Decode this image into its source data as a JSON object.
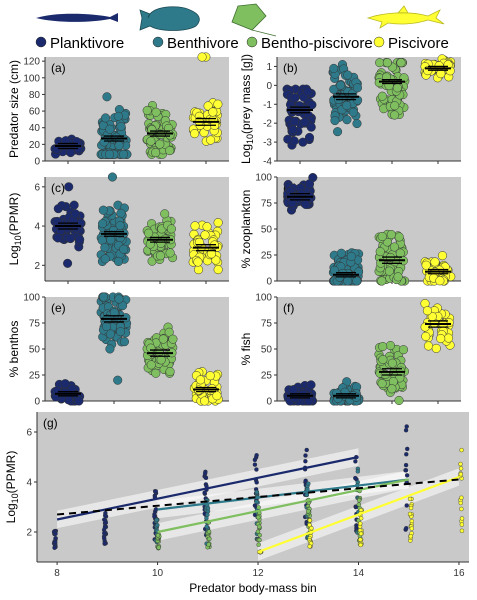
{
  "legend": {
    "items": [
      {
        "label": "Planktivore",
        "color": "#1a2a6c",
        "icon": "eel-fish-icon"
      },
      {
        "label": "Benthivore",
        "color": "#2f7a8a",
        "icon": "flatfish-icon"
      },
      {
        "label": "Bentho-piscivore",
        "color": "#7fbf5f",
        "icon": "stingray-icon"
      },
      {
        "label": "Piscivore",
        "color": "#ffff33",
        "icon": "shark-icon"
      }
    ]
  },
  "chart_data": [
    {
      "panel": "(a)",
      "type": "scatter",
      "ylabel": "Predator size (cm)",
      "ylim": [
        0,
        125
      ],
      "yticks": [
        0,
        20,
        40,
        60,
        80,
        100,
        120
      ],
      "categories": [
        "Planktivore",
        "Benthivore",
        "Bentho-piscivore",
        "Piscivore"
      ],
      "means": [
        18,
        27,
        33,
        47
      ],
      "ci": [
        3,
        3,
        3,
        4
      ],
      "spread": [
        [
          8,
          30
        ],
        [
          8,
          90
        ],
        [
          8,
          80
        ],
        [
          20,
          80
        ]
      ],
      "outliers": [
        [],
        [],
        [],
        [
          125,
          125
        ]
      ],
      "n": [
        45,
        80,
        70,
        45
      ]
    },
    {
      "panel": "(b)",
      "type": "scatter",
      "ylabel": "Log10(prey mass [g])",
      "ylabel_parts": {
        "pre": "Log",
        "sub": "10",
        "post": "(prey mass [g])"
      },
      "ylim": [
        -4,
        1.5
      ],
      "yticks": [
        -4,
        -3,
        -2,
        -1,
        0,
        1
      ],
      "categories": [
        "Planktivore",
        "Benthivore",
        "Bentho-piscivore",
        "Piscivore"
      ],
      "means": [
        -1.3,
        -0.6,
        0.2,
        0.9
      ],
      "ci": [
        0.15,
        0.15,
        0.1,
        0.1
      ],
      "spread": [
        [
          -3.8,
          -0.2
        ],
        [
          -3.2,
          1.1
        ],
        [
          -2.3,
          1.2
        ],
        [
          0.2,
          1.4
        ]
      ],
      "outliers": [
        [],
        [],
        [],
        []
      ],
      "n": [
        60,
        80,
        70,
        45
      ]
    },
    {
      "panel": "(c)",
      "type": "scatter",
      "ylabel": "Log10(PPMR)",
      "ylabel_parts": {
        "pre": "Log",
        "sub": "10",
        "post": "(PPMR)"
      },
      "ylim": [
        1.2,
        6.5
      ],
      "yticks": [
        2,
        4,
        6
      ],
      "categories": [
        "Planktivore",
        "Benthivore",
        "Bentho-piscivore",
        "Piscivore"
      ],
      "means": [
        4.0,
        3.6,
        3.3,
        2.9
      ],
      "ci": [
        0.15,
        0.12,
        0.12,
        0.15
      ],
      "spread": [
        [
          2.4,
          5.5
        ],
        [
          1.8,
          5.7
        ],
        [
          2.0,
          4.8
        ],
        [
          1.6,
          4.6
        ]
      ],
      "outliers": [
        [
          2.1,
          6.0
        ],
        [
          6.5
        ],
        [],
        []
      ],
      "n": [
        50,
        80,
        70,
        45
      ]
    },
    {
      "panel": "(d)",
      "type": "scatter",
      "ylabel": "% zooplankton",
      "ylim": [
        0,
        100
      ],
      "yticks": [
        0,
        25,
        50,
        75,
        100
      ],
      "categories": [
        "Planktivore",
        "Benthivore",
        "Bentho-piscivore",
        "Piscivore"
      ],
      "means": [
        81,
        6,
        20,
        9
      ],
      "ci": [
        3,
        2,
        3,
        2
      ],
      "spread": [
        [
          60,
          100
        ],
        [
          0,
          35
        ],
        [
          0,
          65
        ],
        [
          0,
          30
        ]
      ],
      "outliers": [
        [],
        [],
        [],
        []
      ],
      "n": [
        60,
        80,
        70,
        45
      ]
    },
    {
      "panel": "(e)",
      "type": "scatter",
      "ylabel": "% benthos",
      "ylim": [
        0,
        100
      ],
      "yticks": [
        0,
        25,
        50,
        75,
        100
      ],
      "categories": [
        "Planktivore",
        "Benthivore",
        "Bentho-piscivore",
        "Piscivore"
      ],
      "means": [
        7,
        79,
        46,
        11
      ],
      "ci": [
        2,
        3,
        3,
        2
      ],
      "spread": [
        [
          0,
          22
        ],
        [
          40,
          100
        ],
        [
          15,
          72
        ],
        [
          0,
          35
        ]
      ],
      "outliers": [
        [],
        [
          20
        ],
        [],
        []
      ],
      "n": [
        45,
        80,
        70,
        45
      ]
    },
    {
      "panel": "(f)",
      "type": "scatter",
      "ylabel": "% fish",
      "ylim": [
        0,
        100
      ],
      "yticks": [
        0,
        25,
        50,
        75,
        100
      ],
      "categories": [
        "Planktivore",
        "Benthivore",
        "Bentho-piscivore",
        "Piscivore"
      ],
      "means": [
        5,
        5,
        28,
        74
      ],
      "ci": [
        2,
        2,
        3,
        3
      ],
      "spread": [
        [
          0,
          22
        ],
        [
          0,
          22
        ],
        [
          0,
          60
        ],
        [
          45,
          100
        ]
      ],
      "outliers": [
        [],
        [],
        [],
        []
      ],
      "n": [
        45,
        60,
        70,
        45
      ]
    },
    {
      "panel": "(g)",
      "type": "scatter",
      "xlabel": "Predator body-mass bin",
      "ylabel": "Log10(PPMR)",
      "ylabel_parts": {
        "pre": "Log",
        "sub": "10",
        "post": "(PPMR)"
      },
      "xlim": [
        7.6,
        16.2
      ],
      "ylim": [
        0.8,
        6.8
      ],
      "xticks": [
        8,
        10,
        12,
        14,
        16
      ],
      "yticks": [
        2,
        4,
        6
      ],
      "series": [
        {
          "name": "Planktivore",
          "line_x": [
            8,
            14
          ],
          "line_y": [
            2.5,
            5.0
          ],
          "points": [
            [
              8,
              2.1
            ],
            [
              9,
              2.8
            ],
            [
              10,
              3.7
            ],
            [
              11,
              5.0
            ],
            [
              12,
              5.3
            ],
            [
              13,
              5.3
            ],
            [
              14,
              5.7
            ],
            [
              15,
              6.5
            ]
          ]
        },
        {
          "name": "Benthivore",
          "line_x": [
            10,
            15
          ],
          "line_y": [
            2.9,
            4.1
          ],
          "points": [
            [
              10,
              2.5
            ],
            [
              11,
              3.3
            ],
            [
              12,
              3.6
            ],
            [
              13,
              4.2
            ],
            [
              14,
              4.8
            ]
          ]
        },
        {
          "name": "Bentho-piscivore",
          "line_x": [
            10,
            15
          ],
          "line_y": [
            2.0,
            4.1
          ],
          "points": [
            [
              10,
              1.9
            ],
            [
              11,
              2.4
            ],
            [
              12,
              3.0
            ],
            [
              13,
              3.6
            ],
            [
              14,
              4.0
            ]
          ]
        },
        {
          "name": "Piscivore",
          "line_x": [
            12,
            16
          ],
          "line_y": [
            1.2,
            4.2
          ],
          "points": [
            [
              12,
              1.2
            ],
            [
              13,
              2.5
            ],
            [
              14,
              3.0
            ],
            [
              15,
              3.5
            ],
            [
              16,
              5.3
            ]
          ]
        }
      ],
      "overall_line": {
        "x": [
          8,
          16
        ],
        "y": [
          2.7,
          4.1
        ],
        "style": "dashed"
      }
    }
  ]
}
